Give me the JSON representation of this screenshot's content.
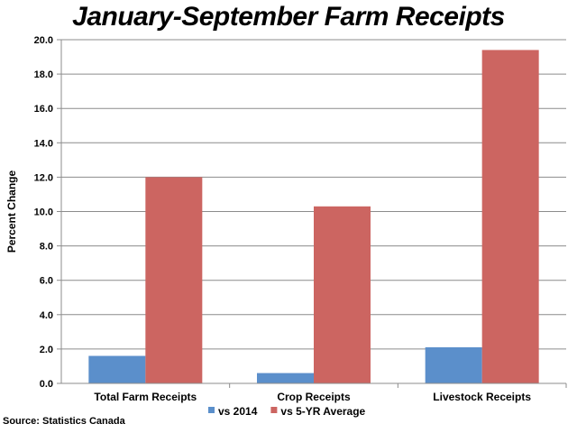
{
  "chart_data": {
    "type": "bar",
    "title": "January-September Farm Receipts",
    "xlabel": "",
    "ylabel": "Percent Change",
    "ylim": [
      0,
      20
    ],
    "ytick_step": 2,
    "ytick_labels": [
      "0.0",
      "2.0",
      "4.0",
      "6.0",
      "8.0",
      "10.0",
      "12.0",
      "14.0",
      "16.0",
      "18.0",
      "20.0"
    ],
    "categories": [
      "Total Farm Receipts",
      "Crop Receipts",
      "Livestock Receipts"
    ],
    "series": [
      {
        "name": "vs 2014",
        "values": [
          1.6,
          0.6,
          2.1
        ],
        "color": "#5b8fcb"
      },
      {
        "name": "vs 5-YR Average",
        "values": [
          12.0,
          10.3,
          19.4
        ],
        "color": "#cc6561"
      }
    ],
    "grid": true,
    "legend_position": "bottom"
  },
  "source": "Source: Statistics Canada"
}
